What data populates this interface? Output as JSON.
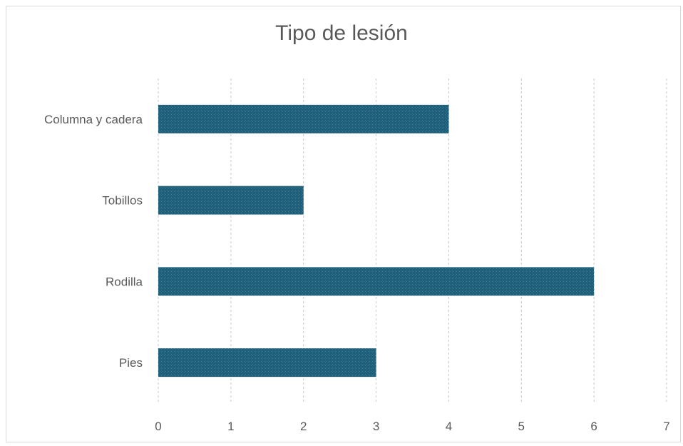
{
  "chart_data": {
    "type": "bar",
    "orientation": "horizontal",
    "title": "Tipo de lesión",
    "categories": [
      "Columna y cadera",
      "Tobillos",
      "Rodilla",
      "Pies"
    ],
    "values": [
      4,
      2,
      6,
      3
    ],
    "xlim": [
      0,
      7
    ],
    "x_ticks": [
      "0",
      "1",
      "2",
      "3",
      "4",
      "5",
      "6",
      "7"
    ],
    "grid": true,
    "legend": "none",
    "bar_color": "#1f5f7a"
  }
}
